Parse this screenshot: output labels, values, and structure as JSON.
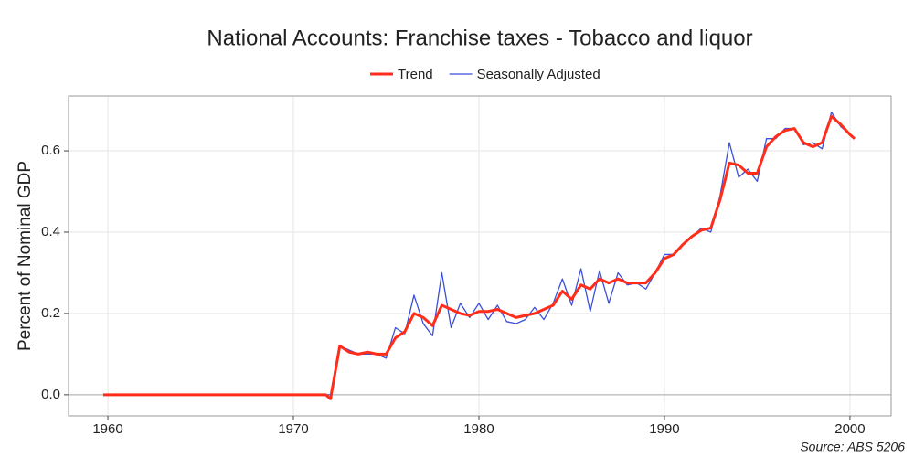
{
  "chart_data": {
    "type": "line",
    "title": "National Accounts: Franchise taxes - Tobacco and liquor",
    "y_label": "Percent of Nominal GDP",
    "source": "Source: ABS 5206",
    "x": [
      1959.75,
      1971.75,
      1972.0,
      1972.5,
      1973.0,
      1973.5,
      1974.0,
      1974.5,
      1975.0,
      1975.5,
      1976.0,
      1976.5,
      1977.0,
      1977.5,
      1978.0,
      1978.5,
      1979.0,
      1979.5,
      1980.0,
      1980.5,
      1981.0,
      1981.5,
      1982.0,
      1982.5,
      1983.0,
      1983.5,
      1984.0,
      1984.5,
      1985.0,
      1985.5,
      1986.0,
      1986.5,
      1987.0,
      1987.5,
      1988.0,
      1988.5,
      1989.0,
      1989.5,
      1990.0,
      1990.5,
      1991.0,
      1991.5,
      1992.0,
      1992.5,
      1993.0,
      1993.5,
      1994.0,
      1994.5,
      1995.0,
      1995.5,
      1996.0,
      1996.5,
      1997.0,
      1997.5,
      1998.0,
      1998.5,
      1999.0,
      1999.5,
      2000.0,
      2000.25
    ],
    "series": [
      {
        "name": "Trend",
        "color": "#ff2d1a",
        "width": 3,
        "values": [
          0,
          0,
          -0.01,
          0.12,
          0.105,
          0.1,
          0.105,
          0.1,
          0.1,
          0.14,
          0.155,
          0.2,
          0.19,
          0.17,
          0.22,
          0.21,
          0.2,
          0.195,
          0.205,
          0.205,
          0.21,
          0.2,
          0.19,
          0.195,
          0.2,
          0.21,
          0.22,
          0.255,
          0.235,
          0.27,
          0.26,
          0.285,
          0.275,
          0.285,
          0.275,
          0.275,
          0.275,
          0.3,
          0.335,
          0.345,
          0.37,
          0.39,
          0.405,
          0.41,
          0.48,
          0.57,
          0.565,
          0.545,
          0.545,
          0.61,
          0.635,
          0.65,
          0.655,
          0.62,
          0.61,
          0.62,
          0.685,
          0.665,
          0.64,
          0.63
        ]
      },
      {
        "name": "Seasonally Adjusted",
        "color": "#3b4fd9",
        "width": 1.3,
        "values": [
          0,
          0,
          0,
          0.12,
          0.11,
          0.1,
          0.1,
          0.1,
          0.09,
          0.165,
          0.15,
          0.245,
          0.175,
          0.145,
          0.3,
          0.165,
          0.225,
          0.19,
          0.225,
          0.185,
          0.22,
          0.18,
          0.175,
          0.185,
          0.215,
          0.185,
          0.225,
          0.285,
          0.22,
          0.31,
          0.205,
          0.305,
          0.225,
          0.3,
          0.27,
          0.275,
          0.26,
          0.3,
          0.345,
          0.345,
          0.37,
          0.39,
          0.41,
          0.4,
          0.49,
          0.62,
          0.535,
          0.555,
          0.525,
          0.63,
          0.63,
          0.655,
          0.655,
          0.615,
          0.62,
          0.605,
          0.695,
          0.66,
          0.64,
          0.63
        ]
      }
    ],
    "xlim": [
      1957.88,
      2002.22
    ],
    "xticks": [
      1960,
      1970,
      1980,
      1990,
      2000
    ],
    "ylim": [
      -0.052,
      0.735
    ],
    "yticks": [
      {
        "value": 0,
        "label": "0.0"
      },
      {
        "value": 0.2,
        "label": "0.2"
      },
      {
        "value": 0.4,
        "label": "0.4"
      },
      {
        "value": 0.6,
        "label": "0.6"
      }
    ],
    "grid": true,
    "legend": "top"
  }
}
